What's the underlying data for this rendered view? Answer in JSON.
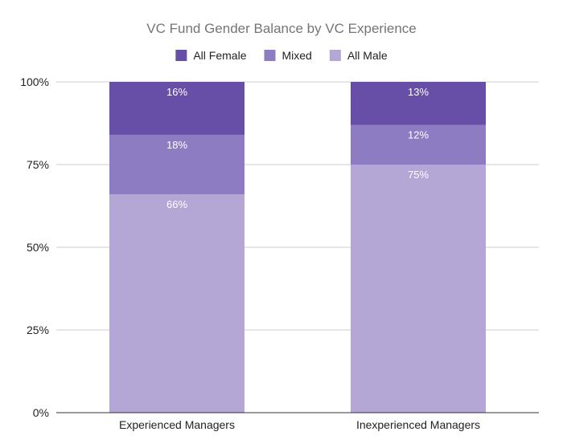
{
  "chart_data": {
    "type": "bar",
    "stacked": true,
    "normalized": true,
    "title": "VC Fund Gender Balance by VC Experience",
    "xlabel": "",
    "ylabel": "",
    "categories": [
      "Experienced Managers",
      "Inexperienced Managers"
    ],
    "series": [
      {
        "name": "All Male",
        "values": [
          66,
          75
        ],
        "labels": [
          "66%",
          "75%"
        ],
        "color": "#b4a7d6"
      },
      {
        "name": "Mixed",
        "values": [
          18,
          12
        ],
        "labels": [
          "18%",
          "12%"
        ],
        "color": "#8e7cc3"
      },
      {
        "name": "All Female",
        "values": [
          16,
          13
        ],
        "labels": [
          "16%",
          "13%"
        ],
        "color": "#674ea7"
      }
    ],
    "legend_order": [
      "All Female",
      "Mixed",
      "All Male"
    ],
    "legend_position": "top",
    "ylim": [
      0,
      100
    ],
    "yticks": [
      0,
      25,
      50,
      75,
      100
    ],
    "ytick_labels": [
      "0%",
      "25%",
      "50%",
      "75%",
      "100%"
    ],
    "grid": true
  }
}
